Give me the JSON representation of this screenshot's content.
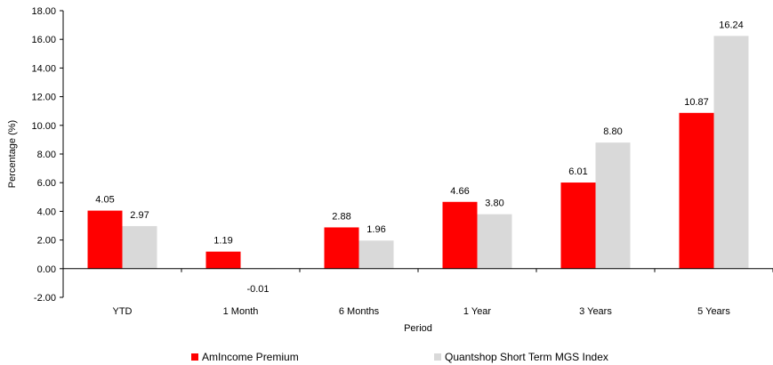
{
  "chart_data": {
    "type": "bar",
    "xlabel": "Period",
    "ylabel": "Percentage (%)",
    "ylim": [
      -2,
      18
    ],
    "ytick_step": 2,
    "categories": [
      "YTD",
      "1 Month",
      "6 Months",
      "1 Year",
      "3 Years",
      "5 Years"
    ],
    "series": [
      {
        "name": "AmIncome Premium",
        "color": "#ff0000",
        "values": [
          4.05,
          1.19,
          2.88,
          4.66,
          6.01,
          10.87
        ]
      },
      {
        "name": "Quantshop Short Term MGS Index",
        "color": "#d9d9d9",
        "values": [
          2.97,
          -0.01,
          1.96,
          3.8,
          8.8,
          16.24
        ]
      }
    ],
    "legend_position": "bottom",
    "grid": false,
    "value_labels": true,
    "value_decimals": 2
  }
}
